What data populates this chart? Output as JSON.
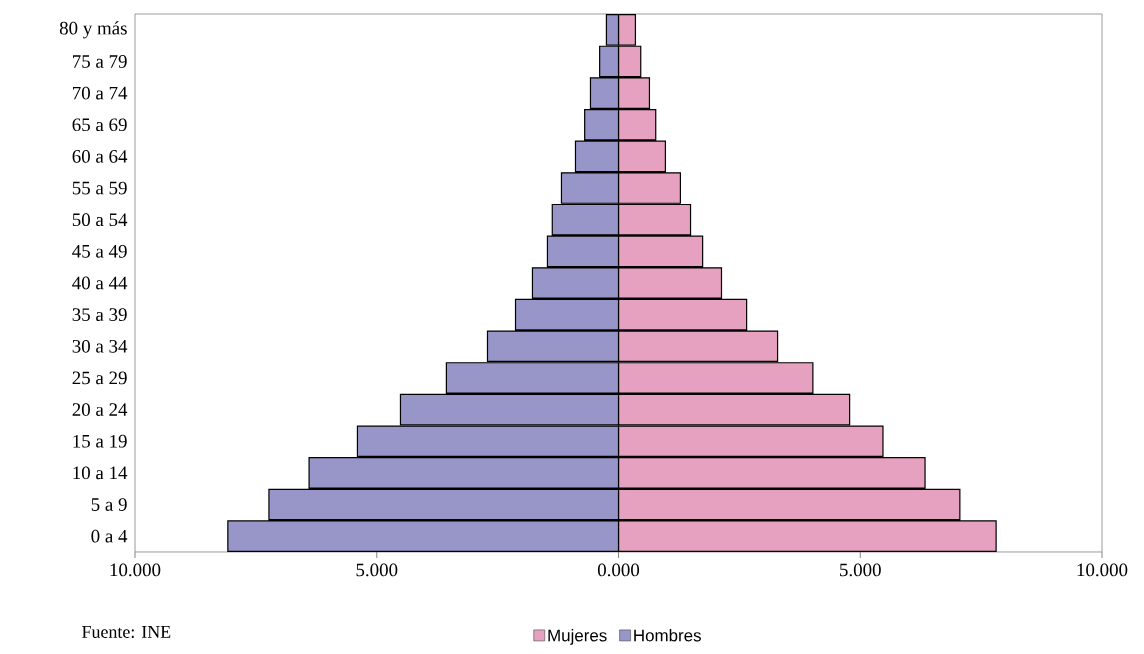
{
  "chart_data": {
    "type": "bar",
    "orientation": "horizontal",
    "stacked": true,
    "categories": [
      "80 y más",
      "75 a 79",
      "70 a 74",
      "65 a 69",
      "60 a 64",
      "55 a 59",
      "50 a 54",
      "45 a 49",
      "40 a 44",
      "35 a 39",
      "30 a 34",
      "25 a 29",
      "20 a 24",
      "15 a 19",
      "10 a 14",
      "5 a 9",
      "0 a 4"
    ],
    "series": [
      {
        "name": "Mujeres",
        "color": "#e6a0c0",
        "values": [
          0.35,
          0.46,
          0.64,
          0.77,
          0.97,
          1.28,
          1.49,
          1.74,
          2.13,
          2.65,
          3.29,
          4.02,
          4.78,
          5.47,
          6.34,
          7.06,
          7.81
        ]
      },
      {
        "name": "Hombres",
        "color": "#9896c8",
        "values": [
          -0.25,
          -0.39,
          -0.58,
          -0.7,
          -0.89,
          -1.18,
          -1.37,
          -1.47,
          -1.78,
          -2.13,
          -2.71,
          -3.56,
          -4.51,
          -5.4,
          -6.4,
          -7.23,
          -8.08
        ]
      }
    ],
    "xlim": [
      -10,
      10
    ],
    "xticks": [
      {
        "value": -10,
        "label": "10.000"
      },
      {
        "value": -5,
        "label": "5.000"
      },
      {
        "value": 0,
        "label": "0.000"
      },
      {
        "value": 5,
        "label": "5.000"
      },
      {
        "value": 10,
        "label": "10.000"
      }
    ],
    "legend": "bottom",
    "annotations": [
      "Fuente: INE"
    ]
  }
}
